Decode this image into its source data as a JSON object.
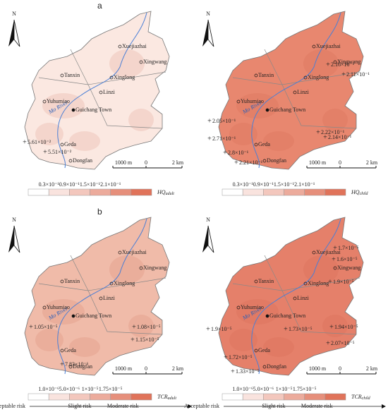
{
  "north": "N",
  "river": "Mo River",
  "places": [
    "Xuejiazhai",
    "Xingwang",
    "Tanxin",
    "Xinglong",
    "Linzi",
    "Yuhumiao",
    "Guichang Town",
    "Geda",
    "Dongfan"
  ],
  "scale": {
    "left": "1000 m",
    "zero": "0",
    "right": "2 km"
  },
  "panels": [
    {
      "label": "a",
      "map_color": "#fbe8e1",
      "samples": [
        "5.61×10⁻²",
        "5.51×10⁻²"
      ],
      "legend": {
        "ticks": [
          "0.3×10⁻¹",
          "0.9×10⁻¹",
          "1.5×10⁻¹",
          "2.1×10⁻¹"
        ],
        "title": {
          "main": "HQ",
          "sub": "adult"
        },
        "color": "#e0735a"
      }
    },
    {
      "map_color": "#e8876f",
      "samples": [
        "2.16×10⁻¹",
        "2.11×10⁻¹",
        "2.05×10⁻¹",
        "2.22×10⁻¹",
        "2.71×10⁻¹",
        "2.8×10⁻¹",
        "2.21×10⁻¹",
        "2.14×10⁻¹"
      ],
      "legend": {
        "ticks": [
          "0.3×10⁻¹",
          "0.9×10⁻¹",
          "1.5×10⁻¹",
          "2.1×10⁻¹"
        ],
        "title": {
          "main": "HQ",
          "sub": "child"
        },
        "color": "#e0735a"
      }
    },
    {
      "label": "b",
      "map_color": "#f0bba9",
      "samples": [
        "1.05×10⁻⁵",
        "1.08×10⁻⁵",
        "1.15×10⁻⁵",
        "7.83×10⁻⁶"
      ],
      "legend": {
        "ticks": [
          "1.0×10⁻⁶",
          "5.0×10⁻⁶",
          "1×10⁻⁵",
          "1.75×10⁻⁵"
        ],
        "title": {
          "main": "TCR",
          "sub": "adult"
        },
        "color": "#e0735a",
        "risk": [
          "Acceptable risk",
          "Slight risk",
          "Moderate risk"
        ]
      }
    },
    {
      "map_color": "#e5806a",
      "samples": [
        "1.7×10⁻⁵",
        "1.6×10⁻⁵",
        "1.9×10⁻⁵",
        "1.9×10⁻⁵",
        "1.73×10⁻⁵",
        "1.94×10⁻⁵",
        "2.07×10⁻⁵",
        "1.72×10⁻⁵",
        "1.33×10⁻⁵"
      ],
      "legend": {
        "ticks": [
          "1.0×10⁻⁶",
          "5.0×10⁻⁶",
          "1×10⁻⁵",
          "1.75×10⁻⁵"
        ],
        "title": {
          "main": "TCR",
          "sub": "child"
        },
        "color": "#e0735a",
        "risk": [
          "Acceptable risk",
          "Slight risk",
          "Moderate risk"
        ]
      }
    }
  ]
}
